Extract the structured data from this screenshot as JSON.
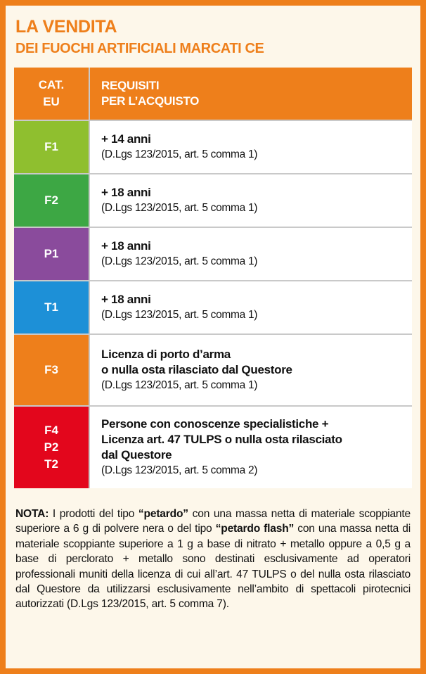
{
  "header": {
    "title": "LA VENDITA",
    "subtitle": "DEI FUOCHI ARTIFICIALI MARCATI CE"
  },
  "table": {
    "header": {
      "category": [
        "CAT.",
        "EU"
      ],
      "requirements": [
        "REQUISITI",
        "PER L’ACQUISTO"
      ],
      "color": "#ee7f1b"
    },
    "rows": [
      {
        "category": [
          "F1"
        ],
        "color": "#8fbf2f",
        "requirements": [
          "+ 14 anni"
        ],
        "reference": "(D.Lgs 123/2015, art. 5 comma 1)"
      },
      {
        "category": [
          "F2"
        ],
        "color": "#3da744",
        "requirements": [
          "+ 18 anni"
        ],
        "reference": "(D.Lgs 123/2015, art. 5 comma 1)"
      },
      {
        "category": [
          "P1"
        ],
        "color": "#8a4b9c",
        "requirements": [
          "+ 18 anni"
        ],
        "reference": "(D.Lgs 123/2015, art. 5 comma 1)"
      },
      {
        "category": [
          "T1"
        ],
        "color": "#1d90d7",
        "requirements": [
          "+ 18 anni"
        ],
        "reference": "(D.Lgs 123/2015, art. 5 comma 1)"
      },
      {
        "category": [
          "F3"
        ],
        "color": "#ee7f1b",
        "requirements": [
          "Licenza di porto d’arma",
          "o nulla osta rilasciato dal Questore"
        ],
        "reference": "(D.Lgs 123/2015, art. 5 comma 1)"
      },
      {
        "category": [
          "F4",
          "P2",
          "T2"
        ],
        "color": "#e3061c",
        "requirements": [
          "Persone con conoscenze specialistiche +",
          "Licenza art. 47 TULPS o nulla osta rilasciato",
          "dal Questore"
        ],
        "reference": "(D.Lgs 123/2015, art. 5 comma 2)"
      }
    ]
  },
  "note": [
    {
      "text": "NOTA:",
      "bold": true
    },
    {
      "text": " I prodotti del tipo ",
      "bold": false
    },
    {
      "text": "“petardo”",
      "bold": true
    },
    {
      "text": " con una massa netta di materiale scoppiante superiore a 6 g di polvere nera o del tipo ",
      "bold": false
    },
    {
      "text": "“petardo flash”",
      "bold": true
    },
    {
      "text": " con una massa netta di materiale scoppiante superiore a 1 g a base di nitrato + metallo oppure a 0,5 g a base di perclorato + metallo sono destinati esclusivamente ad operatori professionali muniti della licenza di cui all’art. 47 TULPS o del nulla osta rilasciato dal Questore da utilizzarsi esclusivamente nell’ambito di spettacoli pirotecnici autorizzati (D.Lgs 123/2015, art. 5 comma 7).",
      "bold": false
    }
  ]
}
